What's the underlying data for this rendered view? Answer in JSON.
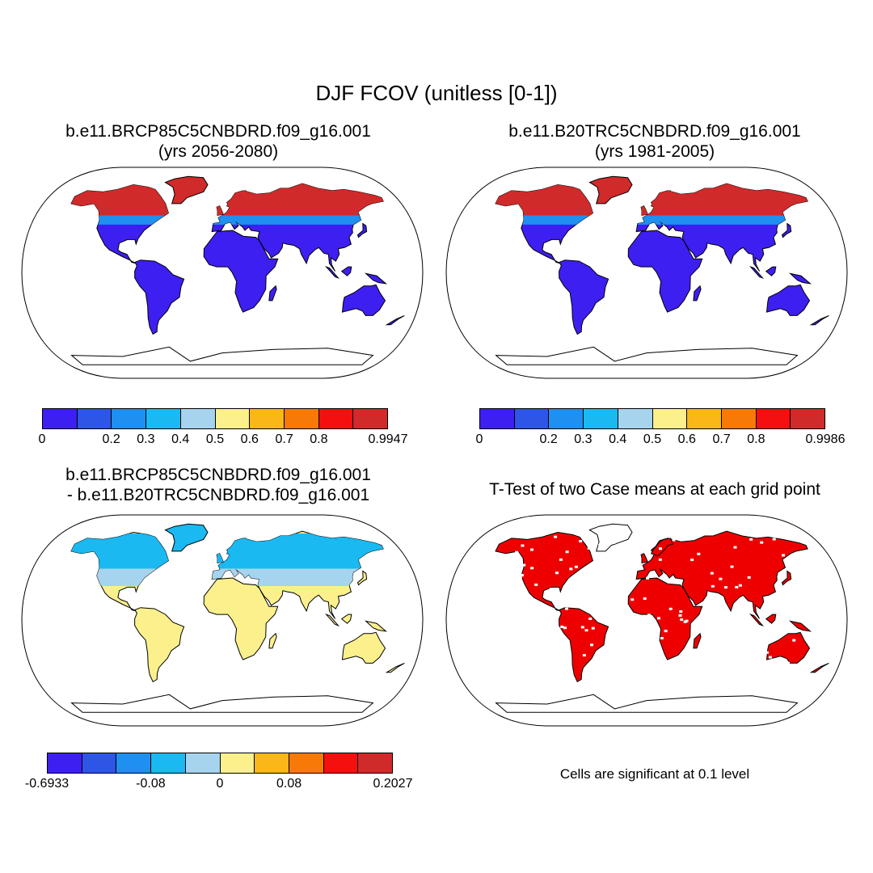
{
  "title": "DJF FCOV (unitless [0-1])",
  "panels": [
    {
      "line1": "b.e11.BRCP85C5CNBDRD.f09_g16.001",
      "line2": "(yrs 2056-2080)"
    },
    {
      "line1": "b.e11.B20TRC5CNBDRD.f09_g16.001",
      "line2": "(yrs 1981-2005)"
    },
    {
      "line1": "b.e11.BRCP85C5CNBDRD.f09_g16.001",
      "line2": "- b.e11.B20TRC5CNBDRD.f09_g16.001"
    },
    {
      "line1": "T-Test of two Case means at each grid point",
      "line2": ""
    }
  ],
  "colorbars": [
    {
      "ticks": [
        "0",
        "0.2",
        "0.3",
        "0.4",
        "0.5",
        "0.6",
        "0.7",
        "0.8",
        "0.9947"
      ],
      "tick_slots": [
        0,
        2,
        3,
        4,
        5,
        6,
        7,
        8,
        10
      ]
    },
    {
      "ticks": [
        "0",
        "0.2",
        "0.3",
        "0.4",
        "0.5",
        "0.6",
        "0.7",
        "0.8",
        "0.9986"
      ],
      "tick_slots": [
        0,
        2,
        3,
        4,
        5,
        6,
        7,
        8,
        10
      ]
    },
    {
      "ticks": [
        "-0.6933",
        "-0.08",
        "0",
        "0.08",
        "0.2027"
      ],
      "tick_slots": [
        0,
        3,
        5,
        7,
        10
      ]
    }
  ],
  "palette": [
    "#3d1ff2",
    "#2d55e6",
    "#1f8ff0",
    "#1ab9f2",
    "#a6d4ee",
    "#fbf08c",
    "#fab717",
    "#f77a08",
    "#f50f0f",
    "#d12a2a"
  ],
  "significance_color": "#ee0000",
  "note": "Cells are significant at 0.1 level"
}
